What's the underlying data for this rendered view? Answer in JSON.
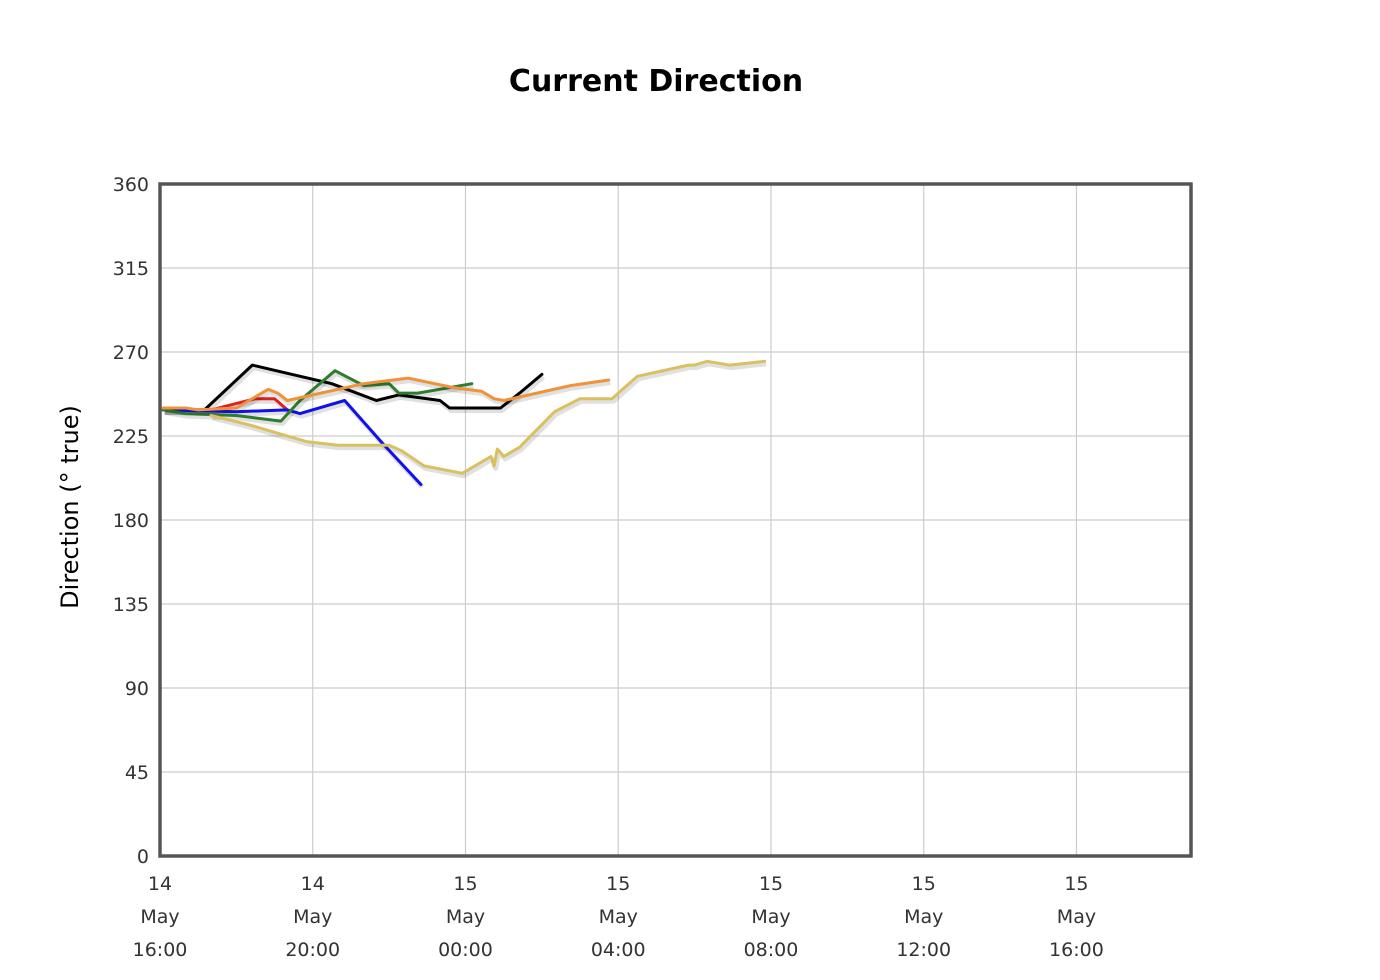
{
  "chart_data": {
    "type": "line",
    "title": "Current Direction",
    "ylabel": "Direction (° true)",
    "xlabel": "",
    "ylim": [
      0,
      360
    ],
    "yticks": [
      0,
      45,
      90,
      135,
      180,
      225,
      270,
      315,
      360
    ],
    "xlim": [
      "2024-05-14T16:00",
      "2024-05-15T19:00"
    ],
    "xticks": [
      {
        "t": "2024-05-14T16:00",
        "label": [
          "14",
          "May",
          "16:00"
        ]
      },
      {
        "t": "2024-05-14T20:00",
        "label": [
          "14",
          "May",
          "20:00"
        ]
      },
      {
        "t": "2024-05-15T00:00",
        "label": [
          "15",
          "May",
          "00:00"
        ]
      },
      {
        "t": "2024-05-15T04:00",
        "label": [
          "15",
          "May",
          "04:00"
        ]
      },
      {
        "t": "2024-05-15T08:00",
        "label": [
          "15",
          "May",
          "08:00"
        ]
      },
      {
        "t": "2024-05-15T12:00",
        "label": [
          "15",
          "May",
          "12:00"
        ]
      },
      {
        "t": "2024-05-15T16:00",
        "label": [
          "15",
          "May",
          "16:00"
        ]
      }
    ],
    "grid": true,
    "legend": "none",
    "series": [
      {
        "color": "#000000",
        "points": [
          [
            "2024-05-14T16:05",
            239
          ],
          [
            "2024-05-14T17:10",
            239
          ],
          [
            "2024-05-14T18:25",
            263
          ],
          [
            "2024-05-14T20:30",
            253
          ],
          [
            "2024-05-14T21:40",
            244
          ],
          [
            "2024-05-14T22:15",
            247
          ],
          [
            "2024-05-14T23:20",
            244
          ],
          [
            "2024-05-14T23:35",
            240
          ],
          [
            "2024-05-15T00:55",
            240
          ],
          [
            "2024-05-15T01:25",
            248
          ],
          [
            "2024-05-15T02:00",
            258
          ]
        ]
      },
      {
        "color": "#e02020",
        "points": [
          [
            "2024-05-14T16:05",
            239
          ],
          [
            "2024-05-14T17:20",
            239
          ],
          [
            "2024-05-14T18:30",
            245
          ],
          [
            "2024-05-14T19:00",
            245
          ],
          [
            "2024-05-14T19:20",
            239
          ]
        ]
      },
      {
        "color": "#1010ee",
        "points": [
          [
            "2024-05-14T16:05",
            239
          ],
          [
            "2024-05-14T18:00",
            238
          ],
          [
            "2024-05-14T19:20",
            239
          ],
          [
            "2024-05-14T19:40",
            237
          ],
          [
            "2024-05-14T20:50",
            244
          ],
          [
            "2024-05-14T21:50",
            221
          ],
          [
            "2024-05-14T22:50",
            199
          ]
        ]
      },
      {
        "color": "#2e7d2e",
        "points": [
          [
            "2024-05-14T16:05",
            239
          ],
          [
            "2024-05-14T16:40",
            237
          ],
          [
            "2024-05-14T18:00",
            236
          ],
          [
            "2024-05-14T19:10",
            233
          ],
          [
            "2024-05-14T19:40",
            244
          ],
          [
            "2024-05-14T20:35",
            260
          ],
          [
            "2024-05-14T21:20",
            252
          ],
          [
            "2024-05-14T22:00",
            253
          ],
          [
            "2024-05-14T22:15",
            248
          ],
          [
            "2024-05-14T22:45",
            248
          ],
          [
            "2024-05-15T00:10",
            253
          ]
        ]
      },
      {
        "color": "#f0923a",
        "points": [
          [
            "2024-05-14T16:05",
            240
          ],
          [
            "2024-05-14T16:40",
            240
          ],
          [
            "2024-05-14T17:00",
            239
          ],
          [
            "2024-05-14T18:00",
            240
          ],
          [
            "2024-05-14T18:50",
            250
          ],
          [
            "2024-05-14T19:05",
            248
          ],
          [
            "2024-05-14T19:20",
            244
          ],
          [
            "2024-05-14T21:20",
            253
          ],
          [
            "2024-05-14T22:30",
            256
          ],
          [
            "2024-05-14T23:40",
            251
          ],
          [
            "2024-05-15T00:25",
            249
          ],
          [
            "2024-05-15T00:45",
            245
          ],
          [
            "2024-05-15T01:00",
            244
          ],
          [
            "2024-05-15T02:45",
            252
          ],
          [
            "2024-05-15T03:45",
            255
          ]
        ]
      },
      {
        "color": "#d9c060",
        "points": [
          [
            "2024-05-14T17:20",
            236
          ],
          [
            "2024-05-14T18:20",
            231
          ],
          [
            "2024-05-14T19:00",
            227
          ],
          [
            "2024-05-14T19:50",
            222
          ],
          [
            "2024-05-14T20:40",
            220
          ],
          [
            "2024-05-14T22:00",
            220
          ],
          [
            "2024-05-14T22:20",
            217
          ],
          [
            "2024-05-14T22:55",
            209
          ],
          [
            "2024-05-14T23:55",
            205
          ],
          [
            "2024-05-15T00:40",
            214
          ],
          [
            "2024-05-15T00:45",
            209
          ],
          [
            "2024-05-15T00:50",
            218
          ],
          [
            "2024-05-15T01:00",
            214
          ],
          [
            "2024-05-15T01:25",
            219
          ],
          [
            "2024-05-15T02:20",
            238
          ],
          [
            "2024-05-15T03:00",
            245
          ],
          [
            "2024-05-15T03:50",
            245
          ],
          [
            "2024-05-15T04:30",
            257
          ],
          [
            "2024-05-15T05:50",
            263
          ],
          [
            "2024-05-15T06:00",
            263
          ],
          [
            "2024-05-15T06:20",
            265
          ],
          [
            "2024-05-15T06:55",
            263
          ],
          [
            "2024-05-15T07:50",
            265
          ]
        ]
      }
    ]
  }
}
